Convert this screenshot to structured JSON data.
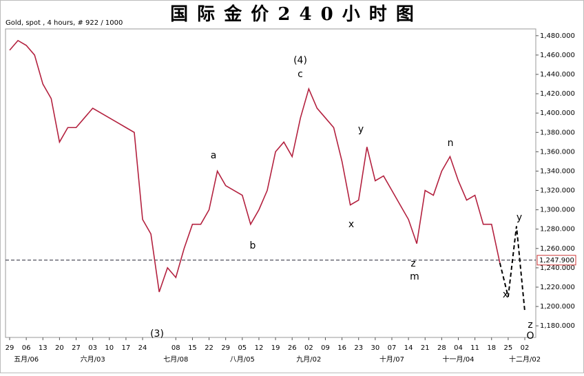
{
  "chart_data": {
    "type": "line",
    "title": "国 际 金 价 2 4 0 小 时 图",
    "subtitle": "Gold, spot , 4 hours, # 922 / 1000",
    "categories": [
      "29",
      null,
      "06",
      null,
      "13",
      null,
      "20",
      null,
      "27",
      null,
      "03",
      null,
      "10",
      null,
      "17",
      null,
      "24",
      null,
      null,
      null,
      "08",
      null,
      "15",
      null,
      "22",
      null,
      "29",
      null,
      "05",
      null,
      "12",
      null,
      "19",
      null,
      "26",
      null,
      "02",
      null,
      "09",
      null,
      "16",
      null,
      "23",
      null,
      "30",
      null,
      "07",
      null,
      "14",
      null,
      "21",
      null,
      "28",
      null,
      "04",
      null,
      "11",
      null,
      "18",
      null,
      "25",
      null,
      "02"
    ],
    "month_categories": [
      null,
      null,
      "五月/06",
      null,
      null,
      null,
      null,
      null,
      null,
      null,
      "六月/03",
      null,
      null,
      null,
      null,
      null,
      null,
      null,
      null,
      null,
      "七月/08",
      null,
      null,
      null,
      null,
      null,
      null,
      null,
      "八月/05",
      null,
      null,
      null,
      null,
      null,
      null,
      null,
      "九月/02",
      null,
      null,
      null,
      null,
      null,
      null,
      null,
      null,
      null,
      "十月/07",
      null,
      null,
      null,
      null,
      null,
      null,
      null,
      "十一月/04",
      null,
      null,
      null,
      null,
      null,
      null,
      null,
      "十二月/02"
    ],
    "series": [
      {
        "name": "Gold",
        "color": "#b3203e",
        "values": [
          1465,
          1475,
          1470,
          1460,
          1430,
          1415,
          1370,
          1385,
          1385,
          1395,
          1405,
          1400,
          1395,
          1390,
          1385,
          1380,
          1290,
          1275,
          1215,
          1240,
          1230,
          1260,
          1285,
          1285,
          1300,
          1340,
          1325,
          1320,
          1315,
          1285,
          1300,
          1320,
          1360,
          1370,
          1355,
          1395,
          1425,
          1405,
          1395,
          1385,
          1350,
          1305,
          1310,
          1365,
          1330,
          1335,
          1320,
          1305,
          1290,
          1265,
          1320,
          1315,
          1340,
          1355,
          1330,
          1310,
          1315,
          1285,
          1285,
          1245,
          null,
          null,
          null
        ]
      },
      {
        "name": "projection",
        "color": "#000000",
        "values": [
          null,
          null,
          null,
          null,
          null,
          null,
          null,
          null,
          null,
          null,
          null,
          null,
          null,
          null,
          null,
          null,
          null,
          null,
          null,
          null,
          null,
          null,
          null,
          null,
          null,
          null,
          null,
          null,
          null,
          null,
          null,
          null,
          null,
          null,
          null,
          null,
          null,
          null,
          null,
          null,
          null,
          null,
          null,
          null,
          null,
          null,
          null,
          null,
          null,
          null,
          null,
          null,
          null,
          null,
          null,
          null,
          null,
          null,
          null,
          1245,
          1210,
          1283,
          1195
        ]
      }
    ],
    "last_price": {
      "value": 1247.9,
      "label": "1,247.900"
    },
    "annotations": [
      "(3)",
      "a",
      "b",
      "(4)",
      "c",
      "y",
      "x",
      "z",
      "m",
      "n",
      "y",
      "x",
      "z",
      "O"
    ],
    "ylim": [
      1168,
      1487
    ],
    "yticks": [
      {
        "value": 1180,
        "label": "1,180.000"
      },
      {
        "value": 1200,
        "label": "1,200.000"
      },
      {
        "value": 1220,
        "label": "1,220.000"
      },
      {
        "value": 1240,
        "label": "1,240.000"
      },
      {
        "value": 1260,
        "label": "1,260.000"
      },
      {
        "value": 1280,
        "label": "1,280.000"
      },
      {
        "value": 1300,
        "label": "1,300.000"
      },
      {
        "value": 1320,
        "label": "1,320.000"
      },
      {
        "value": 1340,
        "label": "1,340.000"
      },
      {
        "value": 1360,
        "label": "1,360.000"
      },
      {
        "value": 1380,
        "label": "1,380.000"
      },
      {
        "value": 1400,
        "label": "1,400.000"
      },
      {
        "value": 1420,
        "label": "1,420.000"
      },
      {
        "value": 1440,
        "label": "1,440.000"
      },
      {
        "value": 1460,
        "label": "1,460.000"
      },
      {
        "value": 1480,
        "label": "1,480.000"
      }
    ]
  }
}
